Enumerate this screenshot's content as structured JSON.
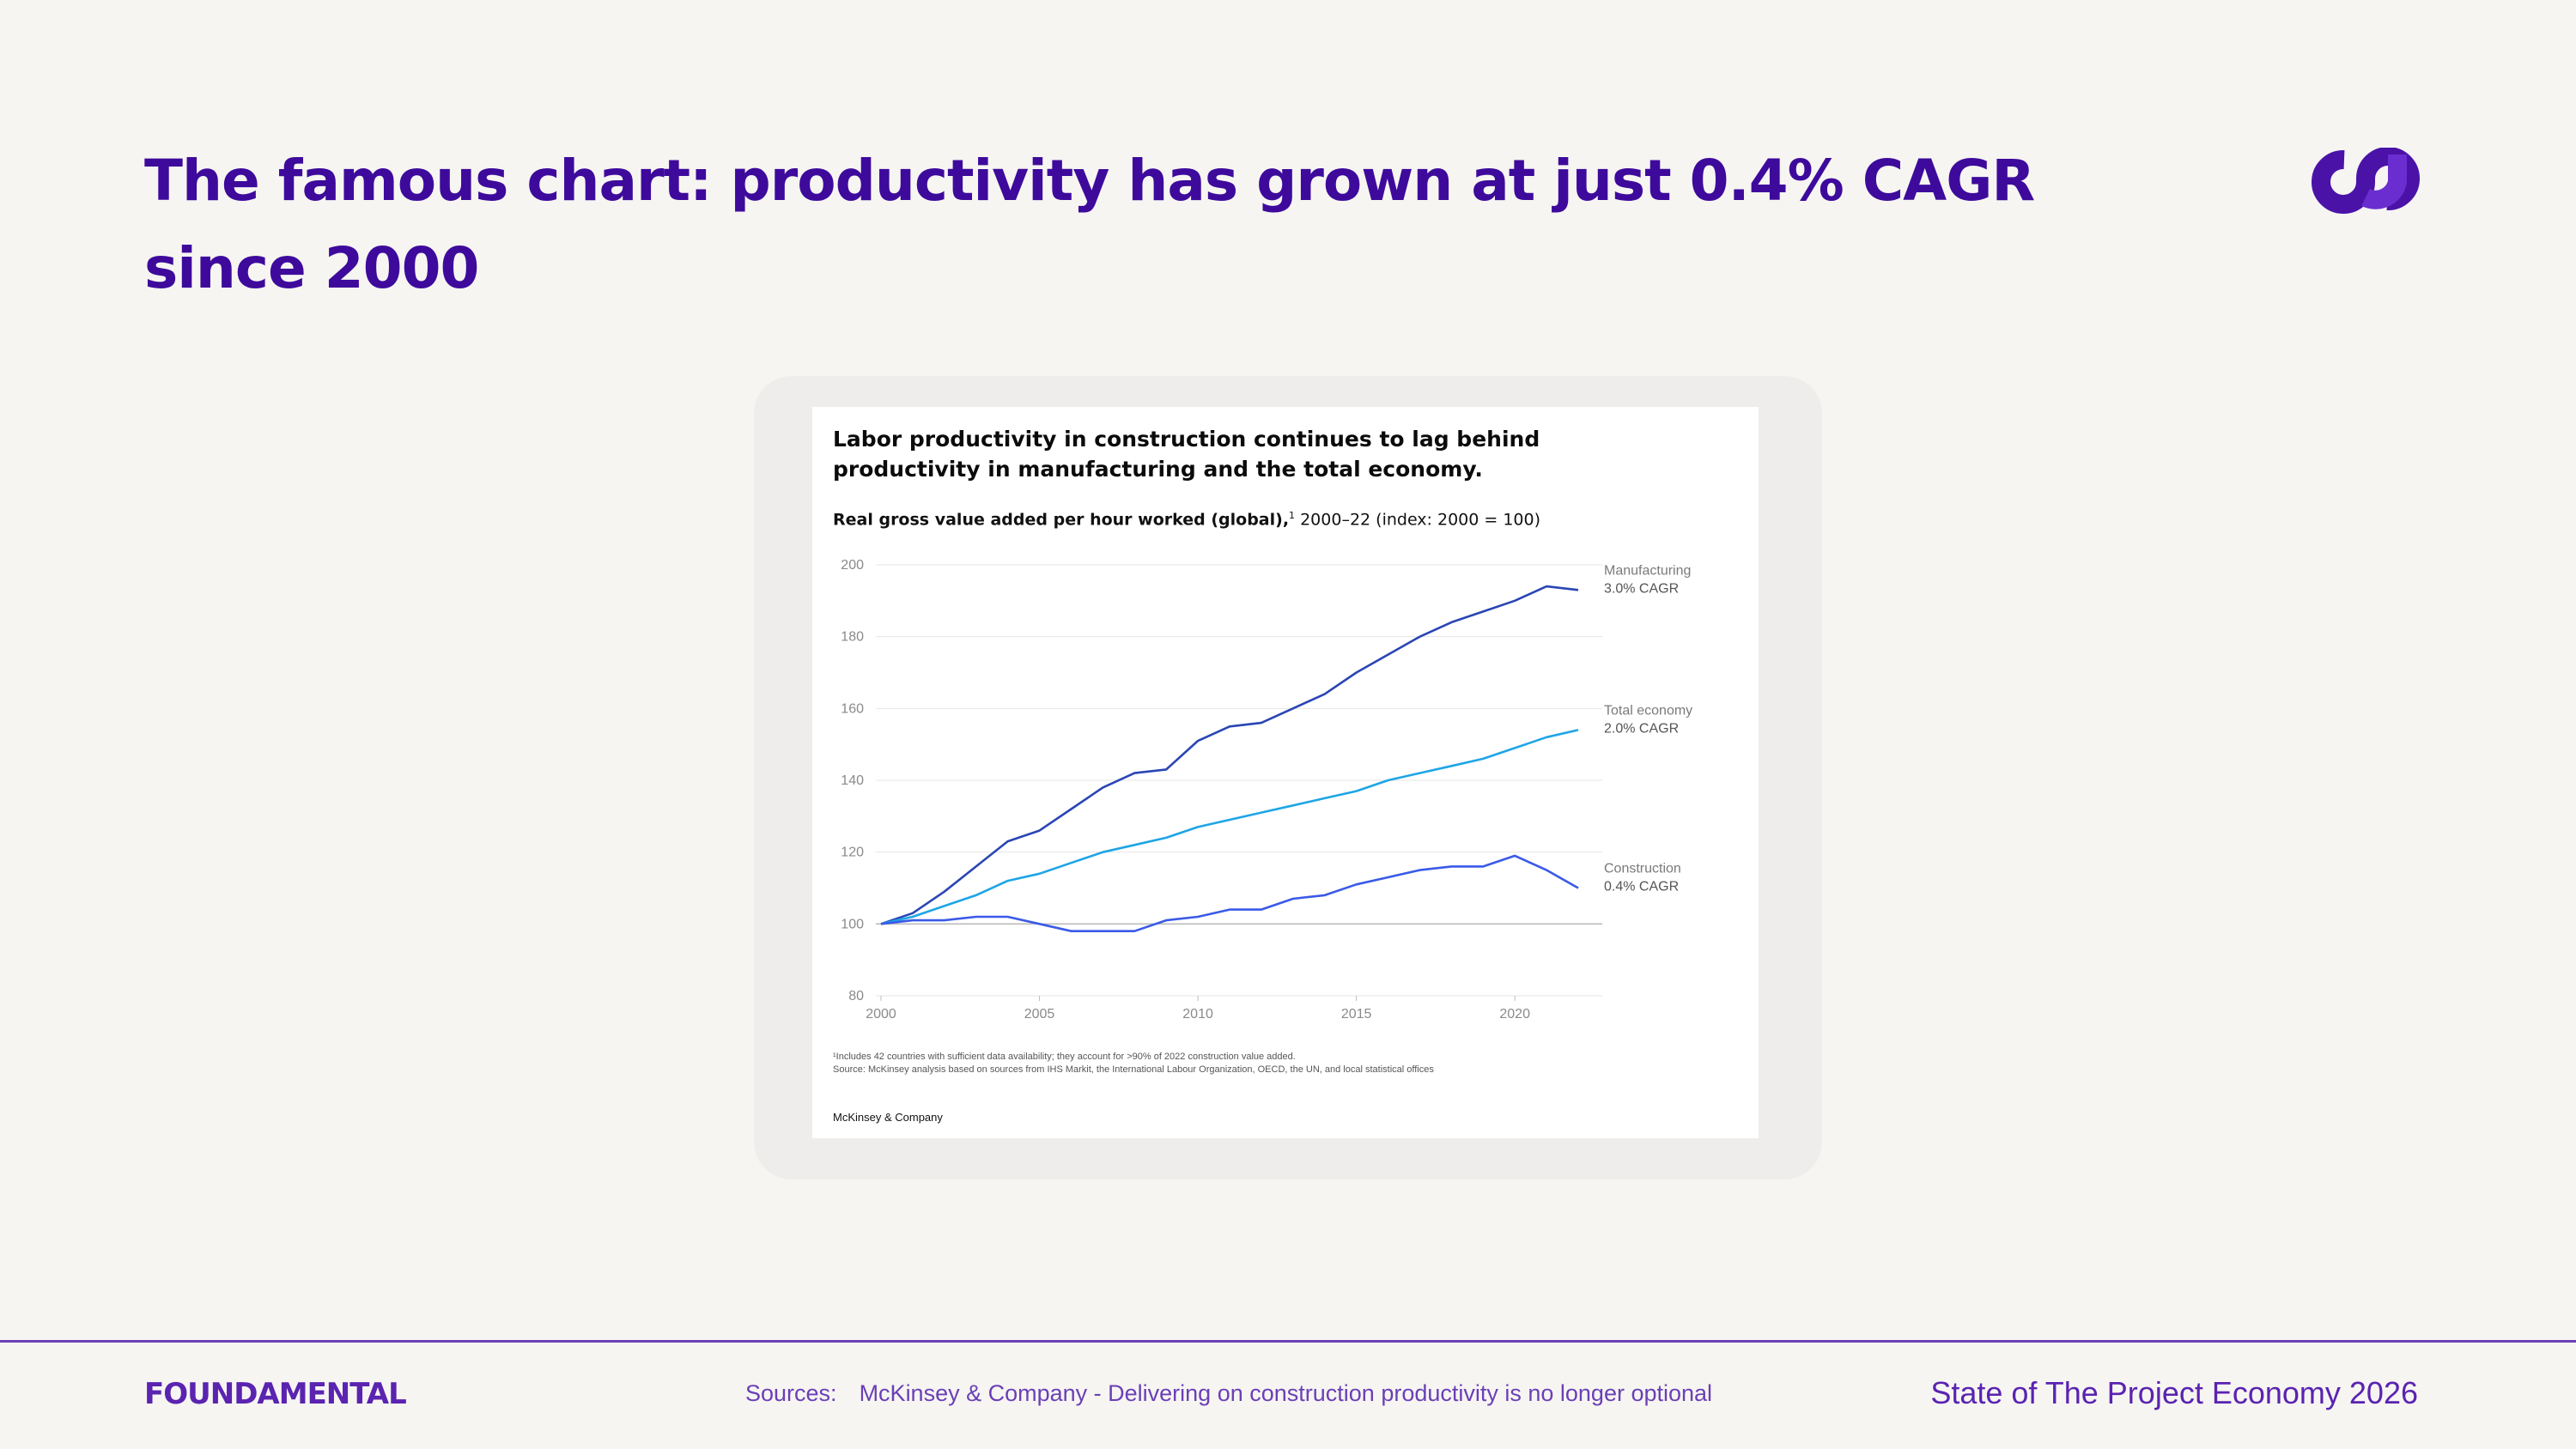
{
  "slide": {
    "title": "The famous chart: productivity has grown at just 0.4% CAGR since 2000"
  },
  "brand": {
    "logo_icon": "brand-loop-mark-icon",
    "primary_color": "#3e0a9c",
    "accent_color": "#6b3fb6"
  },
  "chart_panel": {
    "title": "Labor productivity in construction continues to lag behind productivity in manufacturing and the total economy.",
    "subtitle_bold": "Real gross value added per hour worked (global),",
    "subtitle_sup": "1",
    "subtitle_rest": " 2000–22 (index: 2000 = 100)",
    "footnote_1": "¹Includes 42 countries with sufficient data availability; they account for >90% of 2022 construction value added.",
    "footnote_2": "Source: McKinsey analysis based on sources from IHS Markit, the International Labour Organization, OECD, the UN, and local statistical offices",
    "publisher": "McKinsey & Company"
  },
  "chart_data": {
    "type": "line",
    "x": [
      2000,
      2001,
      2002,
      2003,
      2004,
      2005,
      2006,
      2007,
      2008,
      2009,
      2010,
      2011,
      2012,
      2013,
      2014,
      2015,
      2016,
      2017,
      2018,
      2019,
      2020,
      2021,
      2022
    ],
    "series": [
      {
        "name": "Manufacturing",
        "label_line2": "3.0% CAGR",
        "color": "#2a46b4",
        "values": [
          100,
          103,
          109,
          116,
          123,
          126,
          132,
          138,
          142,
          143,
          151,
          155,
          156,
          160,
          164,
          170,
          175,
          180,
          184,
          187,
          190,
          194,
          193
        ]
      },
      {
        "name": "Total economy",
        "label_line2": "2.0% CAGR",
        "color": "#1ea5e6",
        "values": [
          100,
          102,
          105,
          108,
          112,
          114,
          117,
          120,
          122,
          124,
          127,
          129,
          131,
          133,
          135,
          137,
          140,
          142,
          144,
          146,
          149,
          152,
          154
        ]
      },
      {
        "name": "Construction",
        "label_line2": "0.4% CAGR",
        "color": "#3a5ae8",
        "values": [
          100,
          101,
          101,
          102,
          102,
          100,
          98,
          98,
          98,
          101,
          102,
          104,
          104,
          107,
          108,
          111,
          113,
          115,
          116,
          116,
          119,
          115,
          110
        ]
      }
    ],
    "ylim": [
      80,
      200
    ],
    "yticks": [
      80,
      100,
      120,
      140,
      160,
      180,
      200
    ],
    "xlim": [
      2000,
      2022
    ],
    "xticks": [
      2000,
      2005,
      2010,
      2015,
      2020
    ],
    "grid": "horizontal",
    "legend": "inline-right"
  },
  "footer": {
    "logo_text": "FOUNDAMENTAL",
    "sources_label": "Sources:",
    "sources_text": "McKinsey & Company - Delivering on construction productivity is no longer optional",
    "report_title": "State of The Project Economy 2026"
  }
}
